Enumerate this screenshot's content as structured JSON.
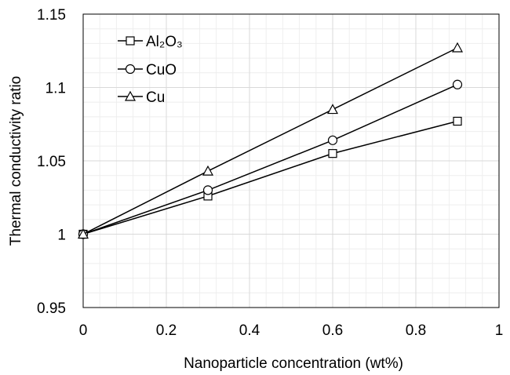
{
  "chart_data": {
    "type": "line",
    "xlabel": "Nanoparticle concentration (wt%)",
    "ylabel": "Thermal conductivity ratio",
    "xlim": [
      0,
      1
    ],
    "ylim": [
      0.95,
      1.15
    ],
    "xticks": [
      0,
      0.2,
      0.4,
      0.6,
      0.8,
      1
    ],
    "yticks": [
      0.95,
      1,
      1.05,
      1.1,
      1.15
    ],
    "xtick_labels": [
      "0",
      "0.2",
      "0.4",
      "0.6",
      "0.8",
      "1"
    ],
    "ytick_labels": [
      "0.95",
      "1",
      "1.05",
      "1.1",
      "1.15"
    ],
    "grid": true,
    "legend_position": "top-left",
    "x": [
      0,
      0.3,
      0.6,
      0.9
    ],
    "series": [
      {
        "name": "Al₂O₃",
        "marker": "square",
        "values": [
          1.0,
          1.026,
          1.055,
          1.077
        ]
      },
      {
        "name": "CuO",
        "marker": "circle",
        "values": [
          1.0,
          1.03,
          1.064,
          1.102
        ]
      },
      {
        "name": "Cu",
        "marker": "triangle",
        "values": [
          1.0,
          1.043,
          1.085,
          1.127
        ]
      }
    ],
    "colors": {
      "line": "#000000",
      "major_grid": "#d9d9d9",
      "minor_grid": "#eeeeee",
      "marker_fill": "#ffffff"
    }
  }
}
